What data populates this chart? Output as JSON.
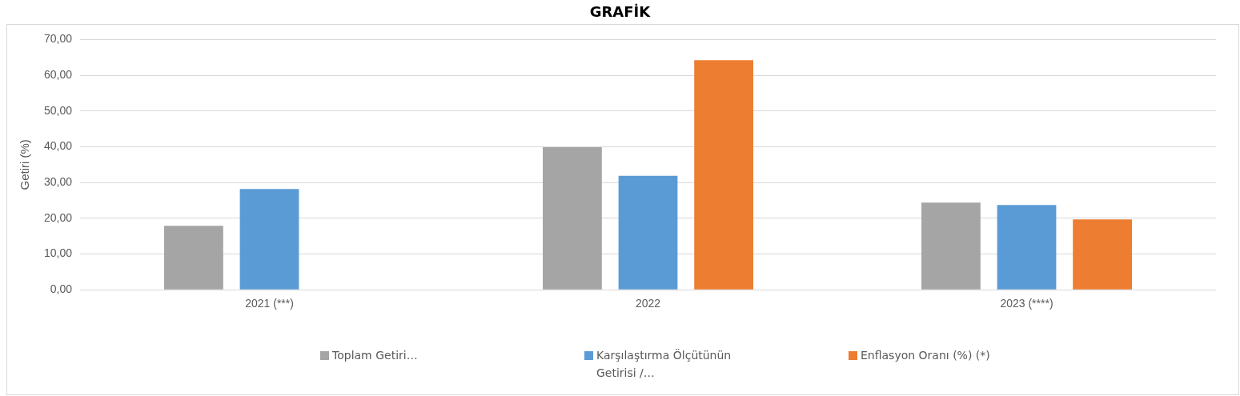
{
  "chart_data": {
    "type": "bar",
    "title": "GRAFİK",
    "ylabel": "Getiri (%)",
    "categories": [
      "2021 (***)",
      "2022",
      "2023 (****)"
    ],
    "series": [
      {
        "name": "Toplam Getiri…",
        "color": "#a5a5a5",
        "values": [
          17.9,
          39.9,
          24.4
        ]
      },
      {
        "name": "Karşılaştırma Ölçütünün Getirisi /…",
        "color": "#5b9bd5",
        "values": [
          28.2,
          31.9,
          23.7
        ]
      },
      {
        "name": "Enflasyon Oranı (%) (*)",
        "color": "#ed7d31",
        "values": [
          null,
          64.2,
          19.7
        ]
      }
    ],
    "ylim": [
      0,
      70
    ],
    "yticks": [
      {
        "value": 0,
        "label": "0,00"
      },
      {
        "value": 10,
        "label": "10,00"
      },
      {
        "value": 20,
        "label": "20,00"
      },
      {
        "value": 30,
        "label": "30,00"
      },
      {
        "value": 40,
        "label": "40,00"
      },
      {
        "value": 50,
        "label": "50,00"
      },
      {
        "value": 60,
        "label": "60,00"
      },
      {
        "value": 70,
        "label": "70,00"
      }
    ],
    "grid": "y",
    "legend": "bottom"
  }
}
